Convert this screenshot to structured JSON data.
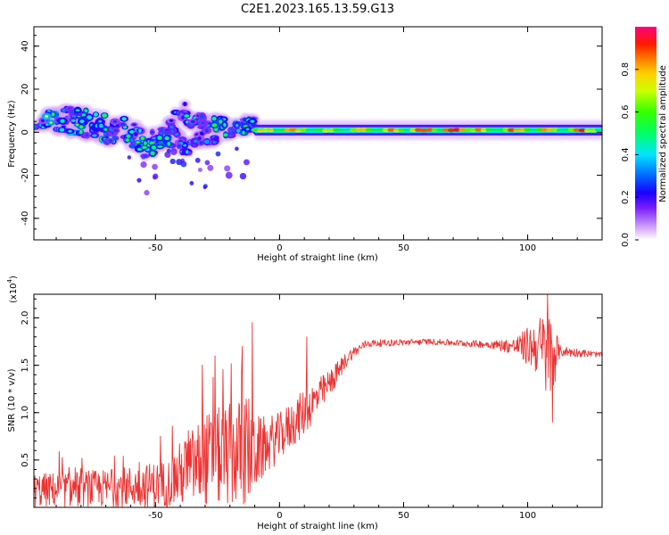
{
  "title": "C2E1.2023.165.13.59.G13",
  "chart_data": [
    {
      "type": "heatmap",
      "xlabel": "Height of straight line (km)",
      "ylabel": "Frequency (Hz)",
      "xlim": [
        -99,
        130
      ],
      "ylim": [
        -50,
        49
      ],
      "xticks": [
        -50,
        0,
        50,
        100
      ],
      "yticks": [
        -40,
        -20,
        0,
        20,
        40
      ],
      "colorbar": {
        "label": "Normalized spectral amplitude",
        "range": [
          0,
          1
        ],
        "ticks": [
          0.0,
          0.2,
          0.4,
          0.6,
          0.8
        ],
        "tick_labels": [
          "0.0",
          "0.2",
          "0.4",
          "0.6",
          "0.8"
        ]
      },
      "ridge": [
        {
          "x": -99,
          "f": 3
        },
        {
          "x": -80,
          "f": 6
        },
        {
          "x": -65,
          "f": 1
        },
        {
          "x": -50,
          "f": -6
        },
        {
          "x": -40,
          "f": 2
        },
        {
          "x": -30,
          "f": -2
        },
        {
          "x": -20,
          "f": 2
        },
        {
          "x": -10,
          "f": 2
        },
        {
          "x": 0,
          "f": 2
        },
        {
          "x": 50,
          "f": 1
        },
        {
          "x": 100,
          "f": 1
        },
        {
          "x": 130,
          "f": 1
        }
      ],
      "blobs": [
        {
          "x": -96,
          "f": 4,
          "a": 0.42
        },
        {
          "x": -92,
          "f": 7,
          "a": 0.58
        },
        {
          "x": -88,
          "f": 4,
          "a": 0.34
        },
        {
          "x": -85,
          "f": 8,
          "a": 0.38
        },
        {
          "x": -82,
          "f": 3,
          "a": 0.62
        },
        {
          "x": -79,
          "f": 7,
          "a": 0.5
        },
        {
          "x": -76,
          "f": 1,
          "a": 0.4
        },
        {
          "x": -73,
          "f": 5,
          "a": 0.45
        },
        {
          "x": -70,
          "f": 0,
          "a": 0.55
        },
        {
          "x": -67,
          "f": -1,
          "a": 0.48
        },
        {
          "x": -64,
          "f": 3,
          "a": 0.4
        },
        {
          "x": -61,
          "f": -3,
          "a": 0.5
        },
        {
          "x": -58,
          "f": 1,
          "a": 0.42
        },
        {
          "x": -55,
          "f": -5,
          "a": 0.52
        },
        {
          "x": -52,
          "f": -8,
          "a": 0.46
        },
        {
          "x": -49,
          "f": -2,
          "a": 0.4
        },
        {
          "x": -46,
          "f": -4,
          "a": 0.48
        },
        {
          "x": -43,
          "f": 2,
          "a": 0.38
        },
        {
          "x": -40,
          "f": 10,
          "a": 0.36
        },
        {
          "x": -38,
          "f": -6,
          "a": 0.35
        },
        {
          "x": -35,
          "f": 6,
          "a": 0.42
        },
        {
          "x": -32,
          "f": -3,
          "a": 0.3
        },
        {
          "x": -30,
          "f": 4,
          "a": 0.4
        },
        {
          "x": -27,
          "f": -2,
          "a": 0.35
        },
        {
          "x": -24,
          "f": 3,
          "a": 0.45
        },
        {
          "x": -20,
          "f": 2,
          "a": 0.5
        },
        {
          "x": -16,
          "f": 3,
          "a": 0.48
        },
        {
          "x": -12,
          "f": 3,
          "a": 0.42
        }
      ],
      "stable_segment": {
        "x_range": [
          -10,
          130
        ],
        "f_center": 1,
        "peaks": [
          {
            "x": -6,
            "a": 0.82
          },
          {
            "x": 6,
            "a": 0.86
          },
          {
            "x": 20,
            "a": 0.76
          },
          {
            "x": 33,
            "a": 0.72
          },
          {
            "x": 45,
            "a": 0.78
          },
          {
            "x": 58,
            "a": 0.9
          },
          {
            "x": 70,
            "a": 0.92
          },
          {
            "x": 80,
            "a": 0.82
          },
          {
            "x": 95,
            "a": 0.85
          },
          {
            "x": 108,
            "a": 0.84
          },
          {
            "x": 122,
            "a": 0.9
          }
        ]
      }
    },
    {
      "type": "line",
      "xlabel": "Height of straight line (km)",
      "ylabel": "SNR (10 * v/v)",
      "y_multiplier_label": "(x10",
      "y_multiplier_exp": "4",
      "xlim": [
        -99,
        130
      ],
      "ylim": [
        0,
        22500
      ],
      "xticks": [
        -50,
        0,
        50,
        100
      ],
      "yticks": [
        5000,
        10000,
        15000,
        20000
      ],
      "ytick_labels": [
        "0.5",
        "1.0",
        "1.5",
        "2.0"
      ],
      "series": [
        {
          "color": "#ee3333",
          "envelope": [
            {
              "x": -99,
              "mean": 1800,
              "amp": 1800
            },
            {
              "x": -70,
              "mean": 2000,
              "amp": 2000
            },
            {
              "x": -45,
              "mean": 2500,
              "amp": 2500
            },
            {
              "x": -40,
              "mean": 3500,
              "amp": 3500
            },
            {
              "x": -30,
              "mean": 5000,
              "amp": 5000
            },
            {
              "x": -20,
              "mean": 5500,
              "amp": 5500
            },
            {
              "x": -12,
              "mean": 6000,
              "amp": 6000
            },
            {
              "x": -8,
              "mean": 6000,
              "amp": 3500
            },
            {
              "x": 0,
              "mean": 7500,
              "amp": 2500
            },
            {
              "x": 10,
              "mean": 10000,
              "amp": 2500
            },
            {
              "x": 20,
              "mean": 13000,
              "amp": 1500
            },
            {
              "x": 28,
              "mean": 16000,
              "amp": 700
            },
            {
              "x": 35,
              "mean": 17300,
              "amp": 400
            },
            {
              "x": 60,
              "mean": 17500,
              "amp": 300
            },
            {
              "x": 85,
              "mean": 17200,
              "amp": 400
            },
            {
              "x": 95,
              "mean": 17000,
              "amp": 900
            },
            {
              "x": 104,
              "mean": 17000,
              "amp": 3000
            },
            {
              "x": 109,
              "mean": 16000,
              "amp": 5500
            },
            {
              "x": 113,
              "mean": 16500,
              "amp": 600
            },
            {
              "x": 130,
              "mean": 16100,
              "amp": 250
            }
          ],
          "spikes": [
            {
              "x": -11,
              "y": 19500
            },
            {
              "x": 11,
              "y": 18000
            },
            {
              "x": 108,
              "y": 22500
            },
            {
              "x": 110,
              "y": 9000
            },
            {
              "x": -15,
              "y": 17000
            },
            {
              "x": -26,
              "y": 16000
            }
          ]
        }
      ]
    }
  ]
}
